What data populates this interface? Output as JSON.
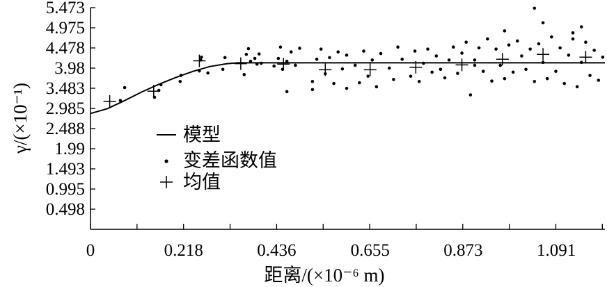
{
  "chart_data": {
    "type": "scatter",
    "xlabel": "距离/(×10⁻⁶ m)",
    "ylabel": "γ/(×10⁻¹)",
    "xlim": [
      0,
      1.205
    ],
    "ylim": [
      0,
      5.473
    ],
    "x_ticks": [
      "0",
      "0.218",
      "0.436",
      "0.655",
      "0.873",
      "1.091"
    ],
    "x_tick_values": [
      0,
      0.218,
      0.436,
      0.655,
      0.873,
      1.091
    ],
    "y_ticks": [
      "0.498",
      "0.995",
      "1.493",
      "1.99",
      "2.488",
      "2.985",
      "3.483",
      "3.98",
      "4.478",
      "4.975",
      "5.473"
    ],
    "y_tick_values": [
      0.498,
      0.995,
      1.493,
      1.99,
      2.488,
      2.985,
      3.483,
      3.98,
      4.478,
      4.975,
      5.473
    ],
    "legend": {
      "position": "left-middle",
      "entries": [
        {
          "label": "模型",
          "marker": "line"
        },
        {
          "label": "变差函数值",
          "marker": "dot"
        },
        {
          "label": "均值",
          "marker": "plus"
        }
      ]
    },
    "series": [
      {
        "name": "模型",
        "kind": "line",
        "x": [
          0,
          0.04,
          0.08,
          0.12,
          0.16,
          0.2,
          0.24,
          0.28,
          0.32,
          0.345,
          1.205
        ],
        "y": [
          2.86,
          2.98,
          3.18,
          3.39,
          3.58,
          3.75,
          3.9,
          4.02,
          4.09,
          4.11,
          4.11
        ]
      },
      {
        "name": "变差函数值",
        "kind": "dot",
        "x": [
          0.07,
          0.08,
          0.15,
          0.16,
          0.165,
          0.21,
          0.212,
          0.255,
          0.258,
          0.26,
          0.275,
          0.31,
          0.315,
          0.36,
          0.365,
          0.37,
          0.375,
          0.39,
          0.395,
          0.4,
          0.43,
          0.44,
          0.445,
          0.45,
          0.46,
          0.47,
          0.48,
          0.49,
          0.52,
          0.53,
          0.54,
          0.55,
          0.56,
          0.57,
          0.58,
          0.59,
          0.6,
          0.62,
          0.63,
          0.64,
          0.65,
          0.66,
          0.67,
          0.68,
          0.7,
          0.71,
          0.72,
          0.73,
          0.75,
          0.76,
          0.77,
          0.78,
          0.79,
          0.8,
          0.81,
          0.83,
          0.84,
          0.85,
          0.86,
          0.87,
          0.88,
          0.89,
          0.9,
          0.91,
          0.92,
          0.93,
          0.94,
          0.95,
          0.96,
          0.97,
          0.98,
          0.99,
          1.0,
          1.01,
          1.02,
          1.03,
          1.04,
          1.05,
          1.06,
          1.07,
          1.08,
          1.09,
          1.1,
          1.11,
          1.12,
          1.13,
          1.14,
          1.15,
          1.16,
          1.17,
          1.18,
          1.19,
          1.2,
          0.97,
          1.04,
          1.15,
          0.9,
          0.82,
          0.6,
          0.52,
          0.46,
          0.385,
          1.06,
          1.13
        ],
        "y": [
          3.18,
          3.5,
          3.26,
          3.43,
          3.57,
          3.65,
          3.8,
          3.91,
          4.18,
          4.25,
          3.86,
          3.95,
          4.24,
          3.82,
          4.32,
          4.46,
          4.15,
          4.08,
          4.33,
          4.1,
          4.03,
          4.22,
          4.5,
          3.95,
          4.15,
          4.38,
          4.05,
          4.47,
          3.65,
          4.2,
          4.45,
          3.84,
          4.24,
          3.6,
          4.38,
          3.96,
          4.3,
          4.05,
          3.62,
          4.4,
          3.78,
          4.18,
          3.52,
          4.34,
          3.98,
          3.7,
          4.5,
          4.2,
          3.78,
          4.4,
          3.65,
          4.1,
          4.45,
          3.88,
          4.28,
          3.74,
          4.18,
          4.5,
          3.85,
          4.35,
          4.62,
          3.32,
          4.05,
          4.48,
          3.9,
          4.7,
          3.66,
          4.45,
          4.05,
          3.72,
          4.55,
          3.88,
          4.65,
          4.28,
          3.95,
          4.45,
          3.65,
          4.58,
          4.12,
          3.72,
          4.75,
          3.9,
          4.48,
          3.6,
          4.3,
          4.7,
          3.52,
          4.12,
          4.62,
          3.8,
          4.42,
          3.68,
          4.25,
          4.9,
          5.46,
          5.0,
          4.18,
          3.95,
          3.48,
          3.45,
          3.4,
          4.22,
          5.1,
          4.85
        ]
      },
      {
        "name": "均值",
        "kind": "plus",
        "x": [
          0.045,
          0.148,
          0.255,
          0.352,
          0.452,
          0.55,
          0.655,
          0.762,
          0.87,
          0.965,
          1.06,
          1.16
        ],
        "y": [
          3.16,
          3.41,
          4.16,
          4.09,
          4.08,
          3.94,
          3.94,
          4.0,
          4.06,
          4.2,
          4.32,
          4.25
        ]
      }
    ]
  }
}
